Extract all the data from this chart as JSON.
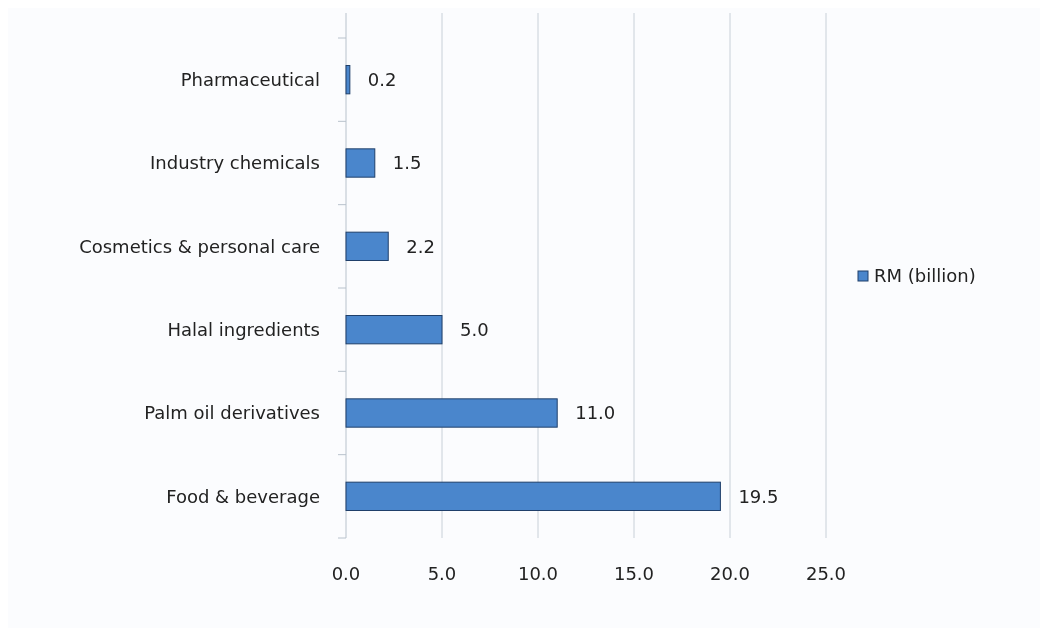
{
  "chart_data": {
    "type": "bar",
    "orientation": "horizontal",
    "categories": [
      "Pharmaceutical",
      "Industry chemicals",
      "Cosmetics & personal care",
      "Halal ingredients",
      "Palm oil derivatives",
      "Food & beverage"
    ],
    "series": [
      {
        "name": "RM (billion)",
        "color": "#4a86cc",
        "values": [
          0.2,
          1.5,
          2.2,
          5.0,
          11.0,
          19.5
        ],
        "value_labels": [
          "0.2",
          "1.5",
          "2.2",
          "5.0",
          "11.0",
          "19.5"
        ]
      }
    ],
    "xlim": [
      0,
      25
    ],
    "xticks": [
      {
        "value": 0,
        "label": "0.0"
      },
      {
        "value": 5,
        "label": "5.0"
      },
      {
        "value": 10,
        "label": "10.0"
      },
      {
        "value": 15,
        "label": "15.0"
      },
      {
        "value": 20,
        "label": "20.0"
      },
      {
        "value": 25,
        "label": "25.0"
      }
    ],
    "grid": "x",
    "legend": "right"
  }
}
